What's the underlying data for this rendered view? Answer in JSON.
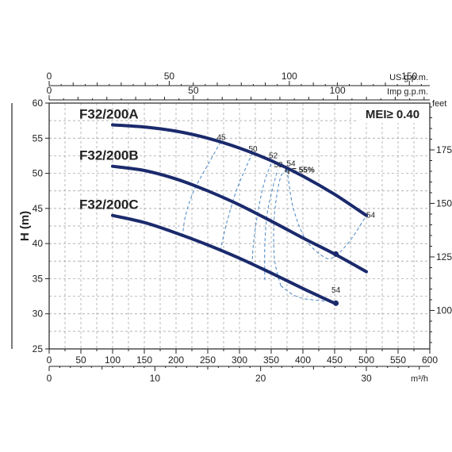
{
  "chart_data": {
    "type": "line",
    "y_axis": {
      "label": "H (m)",
      "range": [
        25,
        60
      ],
      "ticks": [
        25,
        30,
        35,
        40,
        45,
        50,
        55,
        60
      ]
    },
    "feet_axis": {
      "unit": "feet",
      "ticks": [
        100,
        125,
        150,
        175
      ]
    },
    "x_axis_usgpm": {
      "unit": "US g.p.m.",
      "ticks": [
        0,
        50,
        100,
        150
      ]
    },
    "x_axis_impgpm": {
      "unit": "Imp g.p.m.",
      "ticks": [
        0,
        50,
        100
      ]
    },
    "x_axis_lmin": {
      "ticks": [
        0,
        50,
        100,
        150,
        200,
        250,
        300,
        350,
        400,
        450,
        500,
        550,
        600
      ]
    },
    "x_axis_m3h": {
      "unit": "m³/h",
      "ticks": [
        0,
        10,
        20,
        30
      ]
    },
    "mei": "MEI≥ 0.40",
    "efficiency_label": "η = 55%",
    "series": [
      {
        "name": "F32/200A",
        "color": "#1a2a6c",
        "points": [
          [
            100,
            56.9
          ],
          [
            150,
            56.6
          ],
          [
            200,
            56.0
          ],
          [
            250,
            55.0
          ],
          [
            300,
            53.6
          ],
          [
            350,
            51.8
          ],
          [
            400,
            49.6
          ],
          [
            450,
            47.0
          ],
          [
            500,
            44.0
          ]
        ]
      },
      {
        "name": "F32/200B",
        "color": "#1a2a6c",
        "points": [
          [
            100,
            51.0
          ],
          [
            150,
            50.4
          ],
          [
            200,
            49.2
          ],
          [
            250,
            47.5
          ],
          [
            300,
            45.5
          ],
          [
            350,
            43.2
          ],
          [
            400,
            40.8
          ],
          [
            450,
            38.5
          ],
          [
            500,
            36.0
          ]
        ]
      },
      {
        "name": "F32/200C",
        "color": "#1a2a6c",
        "points": [
          [
            100,
            44.0
          ],
          [
            150,
            43.0
          ],
          [
            200,
            41.5
          ],
          [
            250,
            39.8
          ],
          [
            300,
            37.9
          ],
          [
            350,
            35.8
          ],
          [
            400,
            33.6
          ],
          [
            450,
            31.5
          ]
        ]
      }
    ],
    "efficiency_curves": [
      {
        "label": "45",
        "points": [
          [
            210,
            41.0
          ],
          [
            215,
            44.0
          ],
          [
            228,
            47.5
          ],
          [
            250,
            51.2
          ],
          [
            270,
            54.4
          ]
        ]
      },
      {
        "label": "50",
        "points": [
          [
            270,
            39.0
          ],
          [
            280,
            43.0
          ],
          [
            295,
            47.5
          ],
          [
            310,
            50.8
          ],
          [
            320,
            52.8
          ]
        ]
      },
      {
        "label": "52",
        "points": [
          [
            320,
            37.0
          ],
          [
            322,
            40.0
          ],
          [
            330,
            45.0
          ],
          [
            340,
            49.0
          ],
          [
            352,
            51.8
          ]
        ]
      },
      {
        "label": "53",
        "points": [
          [
            340,
            34.8
          ],
          [
            340,
            40.0
          ],
          [
            345,
            45.0
          ],
          [
            360,
            50.5
          ]
        ]
      },
      {
        "label": "54",
        "points": [
          [
            365,
            34.0
          ],
          [
            355,
            38.0
          ],
          [
            355,
            44.0
          ],
          [
            365,
            49.5
          ],
          [
            380,
            50.7
          ]
        ]
      },
      {
        "label": "",
        "points": [
          [
            375,
            50.5
          ],
          [
            385,
            45.0
          ],
          [
            405,
            40.5
          ],
          [
            435,
            38.0
          ],
          [
            452,
            38.3
          ],
          [
            475,
            40.5
          ],
          [
            500,
            44.0
          ]
        ]
      },
      {
        "label": "",
        "points": [
          [
            365,
            34.0
          ],
          [
            395,
            32.3
          ],
          [
            452,
            31.7
          ]
        ]
      }
    ],
    "efficiency_tags": [
      {
        "text": "54",
        "x": 507,
        "y": 43.7
      },
      {
        "text": "54",
        "x": 452,
        "y": 33.0
      }
    ],
    "best_points": [
      [
        452,
        38.5
      ],
      [
        452,
        31.5
      ]
    ]
  }
}
